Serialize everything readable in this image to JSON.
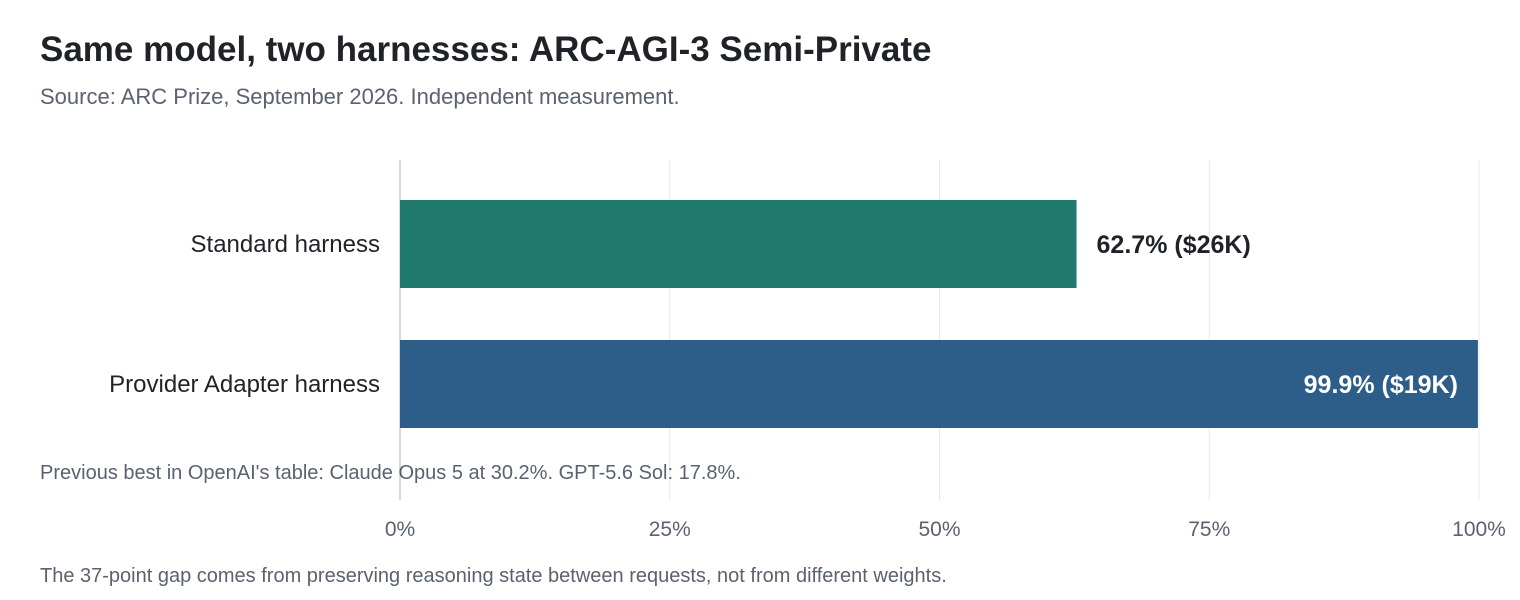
{
  "chart_data": {
    "type": "bar",
    "orientation": "horizontal",
    "title": "Same model, two harnesses: ARC-AGI-3 Semi-Private",
    "subtitle": "Source: ARC Prize, September 2026. Independent measurement.",
    "categories": [
      "Standard harness",
      "Provider Adapter harness"
    ],
    "values": [
      62.7,
      99.9
    ],
    "value_labels": [
      "62.7% ($26K)",
      "99.9% ($19K)"
    ],
    "colors": [
      "#1f7a6d",
      "#2d5e8a"
    ],
    "value_label_colors": [
      "#1f2328",
      "#ffffff"
    ],
    "xlim": [
      0,
      100
    ],
    "xticks": [
      0,
      25,
      50,
      75,
      100
    ],
    "xtick_labels": [
      "0%",
      "25%",
      "50%",
      "75%",
      "100%"
    ],
    "xlabel": "",
    "ylabel": "",
    "grid": true,
    "legend": "none",
    "annotation": "Previous best in OpenAI's table: Claude Opus 5 at 30.2%. GPT-5.6 Sol: 17.8%.",
    "footnote": "The 37-point gap comes from preserving reasoning state between requests, not from different weights."
  }
}
